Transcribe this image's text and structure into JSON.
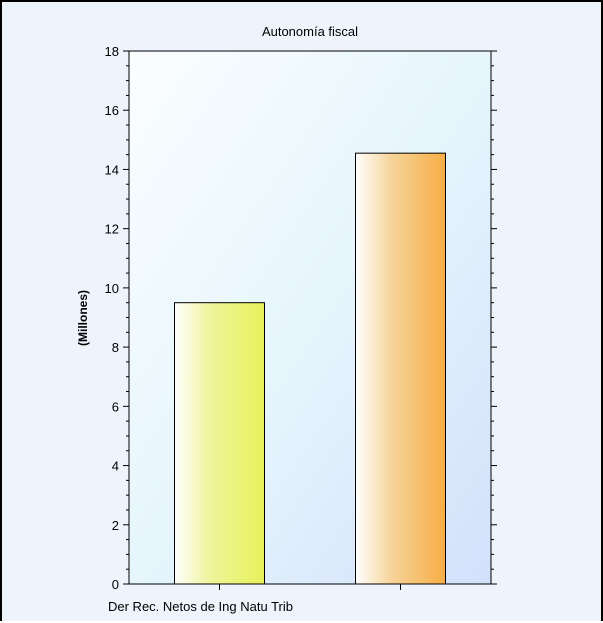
{
  "chart_data": {
    "type": "bar",
    "title": "Autonomía fiscal",
    "ylabel": "(Millones)",
    "xlabel": "",
    "categories": [
      "Der Rec. Netos de Ing Natu Trib",
      ""
    ],
    "values": [
      9.5,
      14.55
    ],
    "bar_colors": [
      "#e8f25a",
      "#f7ad45"
    ],
    "ylim": [
      0,
      18
    ],
    "yticks": [
      0,
      2,
      4,
      6,
      8,
      10,
      12,
      14,
      16,
      18
    ],
    "grid": false,
    "legend": "none"
  },
  "colors": {
    "frame_border": "#000000",
    "plot_bg_start": "#fbfdff",
    "plot_bg_mid": "#e6f6fc",
    "plot_bg_end": "#d3e0fb"
  }
}
